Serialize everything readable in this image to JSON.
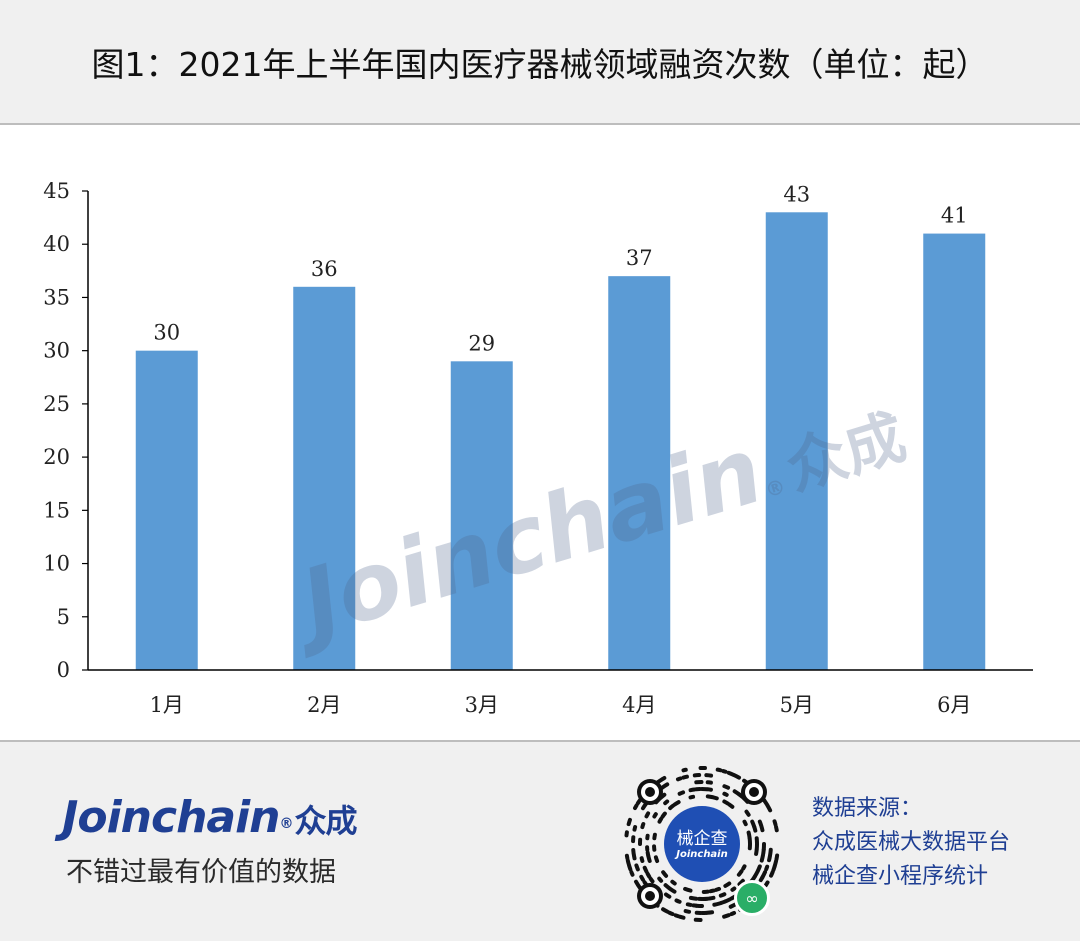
{
  "header": {
    "title": "图1：2021年上半年国内医疗器械领域融资次数（单位：起）"
  },
  "chart_data": {
    "type": "bar",
    "title": "图1：2021年上半年国内医疗器械领域融资次数（单位：起）",
    "categories": [
      "1月",
      "2月",
      "3月",
      "4月",
      "5月",
      "6月"
    ],
    "values": [
      30,
      36,
      29,
      37,
      43,
      41
    ],
    "ylim": [
      0,
      45
    ],
    "yticks": [
      0,
      5,
      10,
      15,
      20,
      25,
      30,
      35,
      40,
      45
    ],
    "xlabel": "",
    "ylabel": "",
    "grid": false,
    "legend": "none",
    "bar_color": "#5b9bd5",
    "data_labels": true
  },
  "watermark": {
    "text": "Joinchain",
    "reg": "®",
    "cn": "众成"
  },
  "footer": {
    "logo": {
      "text": "Joinchain",
      "reg": "®",
      "cn": "众成",
      "color": "#1f3f93"
    },
    "slogan": "不错过最有价值的数据",
    "qr": {
      "center_text": "械企查",
      "center_sub": "Joinchain",
      "badge_icon": "mini-program-icon"
    },
    "source_lines": [
      "数据来源：",
      "众成医械大数据平台",
      "械企查小程序统计"
    ]
  }
}
